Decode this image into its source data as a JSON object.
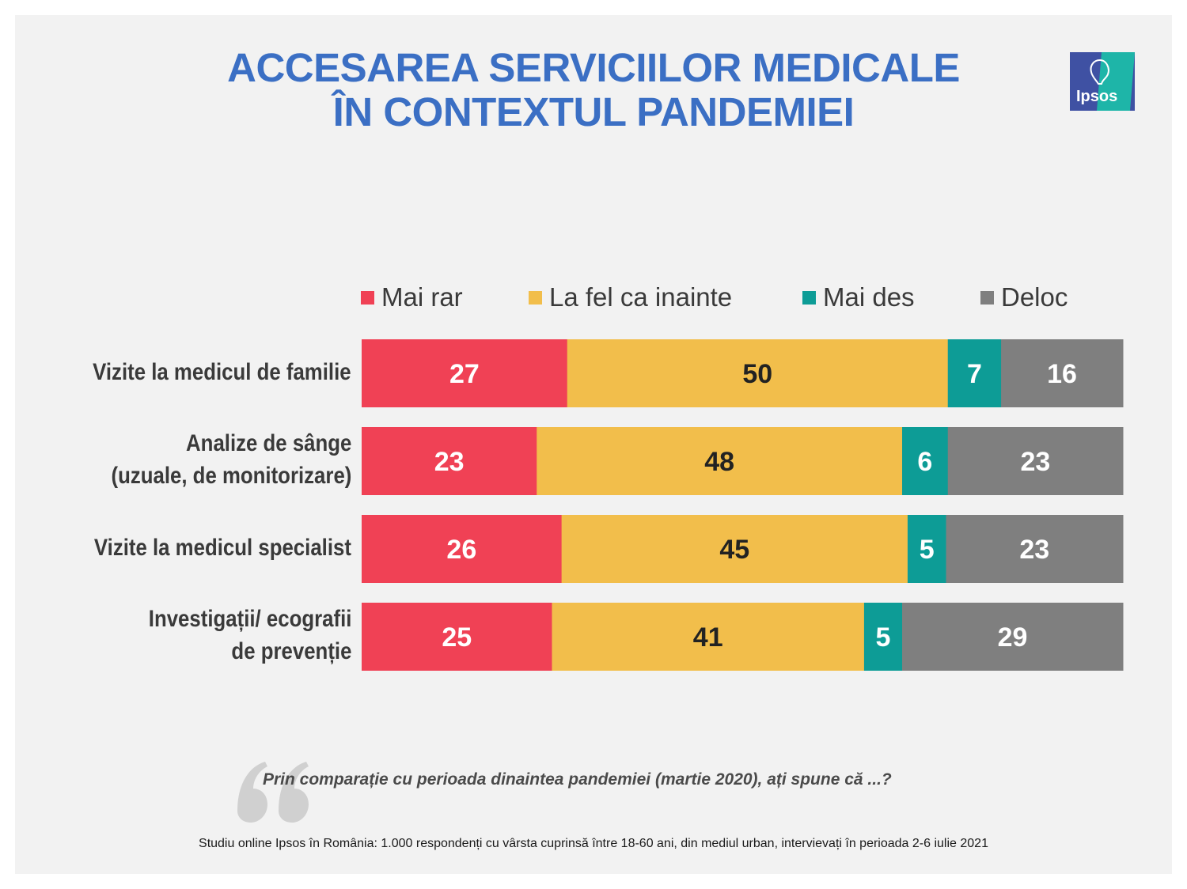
{
  "header": {
    "title_line1": "ACCESAREA SERVICIILOR MEDICALE",
    "title_line2": "ÎN CONTEXTUL PANDEMIEI",
    "logo_text": "Ipsos"
  },
  "colors": {
    "mai_rar": "#f04155",
    "la_fel": "#f2be4b",
    "mai_des": "#0d9c96",
    "deloc": "#7f7f7f",
    "title": "#3b6fc4",
    "logo_blue": "#3f51a3",
    "logo_teal": "#1eb5a8"
  },
  "chart_data": {
    "type": "bar",
    "orientation": "horizontal",
    "stacked": true,
    "unit": "%",
    "categories": [
      [
        "Vizite la medicul de familie"
      ],
      [
        "Analize de sânge",
        "(uzuale, de monitorizare)"
      ],
      [
        "Vizite la medicul specialist"
      ],
      [
        "Investigații/ ecografii",
        "de prevenție"
      ]
    ],
    "series": [
      {
        "name": "Mai rar",
        "values": [
          27,
          23,
          26,
          25
        ]
      },
      {
        "name": "La fel ca inainte",
        "values": [
          50,
          48,
          45,
          41
        ]
      },
      {
        "name": "Mai des",
        "values": [
          7,
          6,
          5,
          5
        ]
      },
      {
        "name": "Deloc",
        "values": [
          16,
          23,
          23,
          29
        ]
      }
    ],
    "legend_position": "top",
    "grid": false
  },
  "question": "Prin comparație cu perioada dinaintea pandemiei (martie 2020), ați spune că ...?",
  "footnote": "Studiu online Ipsos în România: 1.000 respondenți cu vârsta cuprinsă între 18-60 ani, din mediul urban, intervievați în perioada 2-6 iulie 2021"
}
